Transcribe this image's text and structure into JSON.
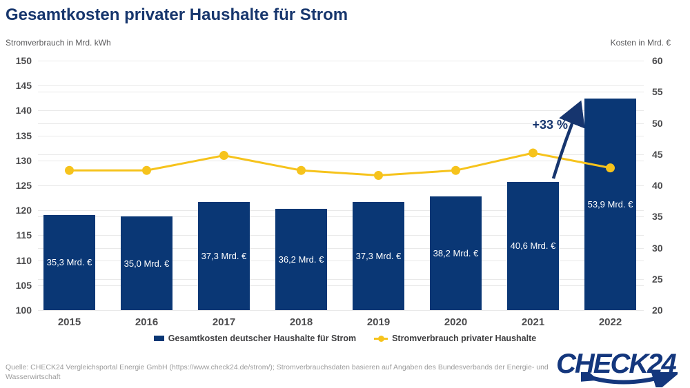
{
  "title": "Gesamtkosten privater Haushalte für Strom",
  "chart_data": {
    "type": "bar",
    "title": "Gesamtkosten privater Haushalte für Strom",
    "categories": [
      "2015",
      "2016",
      "2017",
      "2018",
      "2019",
      "2020",
      "2021",
      "2022"
    ],
    "series": [
      {
        "name": "Gesamtkosten deutscher Haushalte für Strom",
        "type": "bar",
        "axis": "right",
        "values": [
          35.3,
          35.0,
          37.3,
          36.2,
          37.3,
          38.2,
          40.6,
          53.9
        ],
        "value_labels": [
          "35,3 Mrd. €",
          "35,0 Mrd. €",
          "37,3 Mrd. €",
          "36,2 Mrd. €",
          "37,3 Mrd. €",
          "38,2 Mrd. €",
          "40,6 Mrd. €",
          "53,9 Mrd. €"
        ],
        "color": "#0a3775"
      },
      {
        "name": "Stromverbrauch privater Haushalte",
        "type": "line",
        "axis": "left",
        "values": [
          128,
          128,
          131,
          128,
          127,
          128,
          131.5,
          128.5
        ],
        "color": "#f6c31c"
      }
    ],
    "left_axis": {
      "title": "Stromverbrauch in Mrd. kWh",
      "min": 100,
      "max": 150,
      "step": 5,
      "ticks": [
        150,
        145,
        140,
        135,
        130,
        125,
        120,
        115,
        110,
        105,
        100
      ]
    },
    "right_axis": {
      "title": "Kosten in Mrd. €",
      "min": 20,
      "max": 60,
      "step": 5,
      "ticks": [
        60,
        55,
        50,
        45,
        40,
        35,
        30,
        25,
        20
      ]
    },
    "grid": true,
    "legend_position": "bottom",
    "annotation": {
      "text": "+33 %"
    }
  },
  "axes": {
    "left_title": "Stromverbrauch in Mrd. kWh",
    "right_title": "Kosten in Mrd. €"
  },
  "legend": {
    "bar_label": "Gesamtkosten deutscher Haushalte für Strom",
    "line_label": "Stromverbrauch privater Haushalte"
  },
  "annotation_text": "+33 %",
  "source_text": "Quelle: CHECK24 Vergleichsportal Energie GmbH (https://www.check24.de/strom/); Stromverbrauchsdaten basieren auf Angaben des Bundesverbands der Energie- und Wasserwirtschaft",
  "logo_text": "CHECK24",
  "colors": {
    "bar": "#0a3775",
    "line": "#f6c31c",
    "title": "#17366d",
    "arrow": "#16356e",
    "grid": "#e9e9e9"
  }
}
